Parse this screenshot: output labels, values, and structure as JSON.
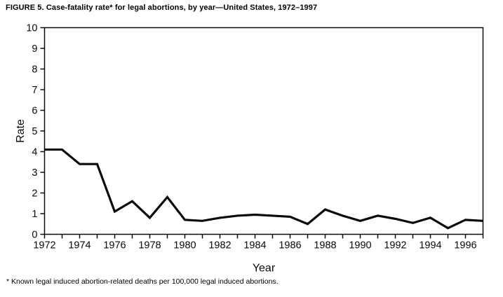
{
  "title": "FIGURE 5. Case-fatality rate* for legal abortions, by year—United States, 1972–1997",
  "footnote": "* Known legal induced abortion-related deaths per 100,000 legal induced abortions.",
  "chart_data": {
    "type": "line",
    "title": "FIGURE 5. Case-fatality rate* for legal abortions, by year—United States, 1972–1997",
    "xlabel": "Year",
    "ylabel": "Rate",
    "x": [
      1972,
      1973,
      1974,
      1975,
      1976,
      1977,
      1978,
      1979,
      1980,
      1981,
      1982,
      1983,
      1984,
      1985,
      1986,
      1987,
      1988,
      1989,
      1990,
      1991,
      1992,
      1993,
      1994,
      1995,
      1996,
      1997
    ],
    "values": [
      4.1,
      4.1,
      3.4,
      3.4,
      1.1,
      1.6,
      0.8,
      1.8,
      0.7,
      0.65,
      0.8,
      0.9,
      0.95,
      0.9,
      0.85,
      0.5,
      1.2,
      0.9,
      0.65,
      0.9,
      0.75,
      0.55,
      0.8,
      0.3,
      0.7,
      0.65
    ],
    "xlim": [
      1972,
      1997
    ],
    "ylim": [
      0,
      10
    ],
    "y_ticks": [
      0,
      1,
      2,
      3,
      4,
      5,
      6,
      7,
      8,
      9,
      10
    ],
    "x_tick_every_year": true,
    "x_label_years": [
      1972,
      1974,
      1976,
      1978,
      1980,
      1982,
      1984,
      1986,
      1988,
      1990,
      1992,
      1994,
      1996
    ],
    "grid": false,
    "legend": "none",
    "line_color": "#0a0a0a",
    "axis_color": "#0a0a0a",
    "background_color": "#ffffff"
  }
}
